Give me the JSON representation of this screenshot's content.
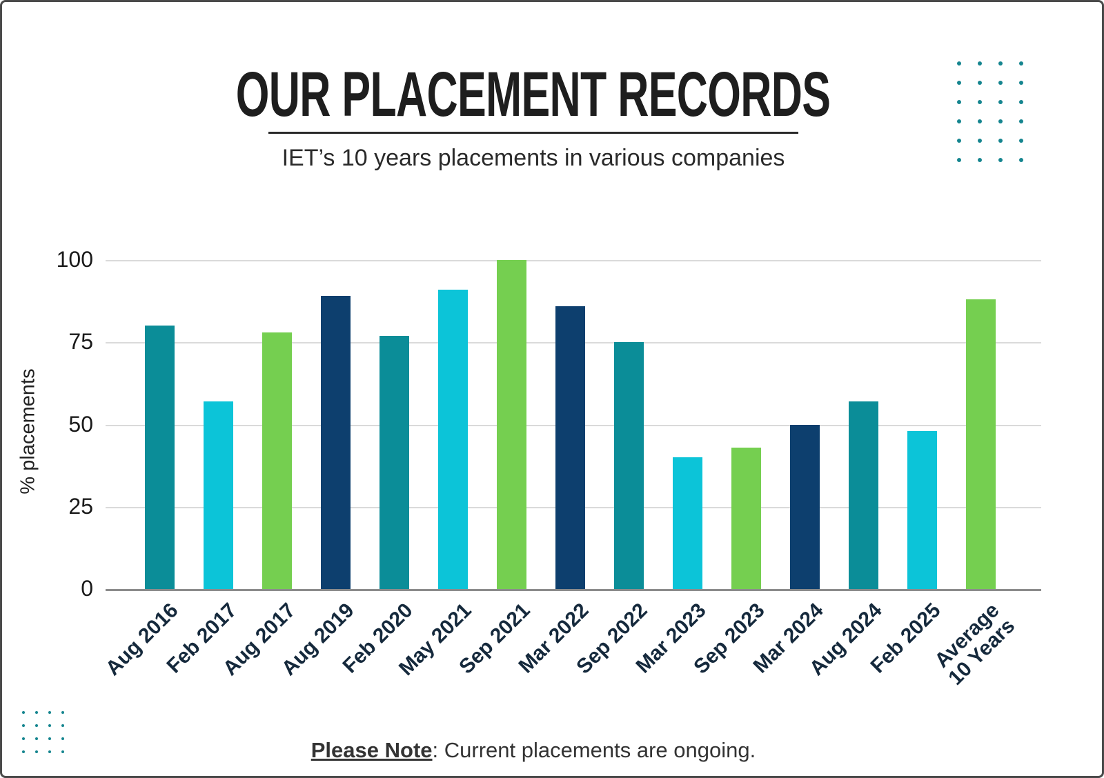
{
  "header": {
    "title": "OUR PLACEMENT RECORDS",
    "subtitle": "IET’s 10 years placements in various companies"
  },
  "note": {
    "label": "Please Note",
    "text": ": Current placements are ongoing."
  },
  "colors": {
    "teal": "#0b8d98",
    "cyan": "#0cc4d8",
    "green": "#75cf50",
    "navy": "#0d3f6e",
    "dot": "#15858f",
    "grid_line": "#dadada",
    "axis_line": "#8c8c8c",
    "xlabel_text": "#15293c"
  },
  "chart_data": {
    "type": "bar",
    "title": "OUR PLACEMENT RECORDS",
    "subtitle": "IET’s 10 years placements in various companies",
    "categories": [
      "Aug 2016",
      "Feb 2017",
      "Aug 2017",
      "Aug 2019",
      "Feb 2020",
      "May 2021",
      "Sep 2021",
      "Mar 2022",
      "Sep 2022",
      "Mar 2023",
      "Sep 2023",
      "Mar 2024",
      "Aug 2024",
      "Feb 2025",
      "Average 10 Years"
    ],
    "values": [
      80,
      57,
      78,
      89,
      77,
      91,
      100,
      86,
      75,
      40,
      43,
      50,
      57,
      48,
      88
    ],
    "bar_colors": [
      "teal",
      "cyan",
      "green",
      "navy",
      "teal",
      "cyan",
      "green",
      "navy",
      "teal",
      "cyan",
      "green",
      "navy",
      "teal",
      "cyan",
      "green"
    ],
    "ylabel": "% placements",
    "xlabel": "",
    "ylim": [
      0,
      100
    ],
    "yticks": [
      0,
      25,
      50,
      75,
      100
    ],
    "grid": "horizontal",
    "legend": "none"
  }
}
